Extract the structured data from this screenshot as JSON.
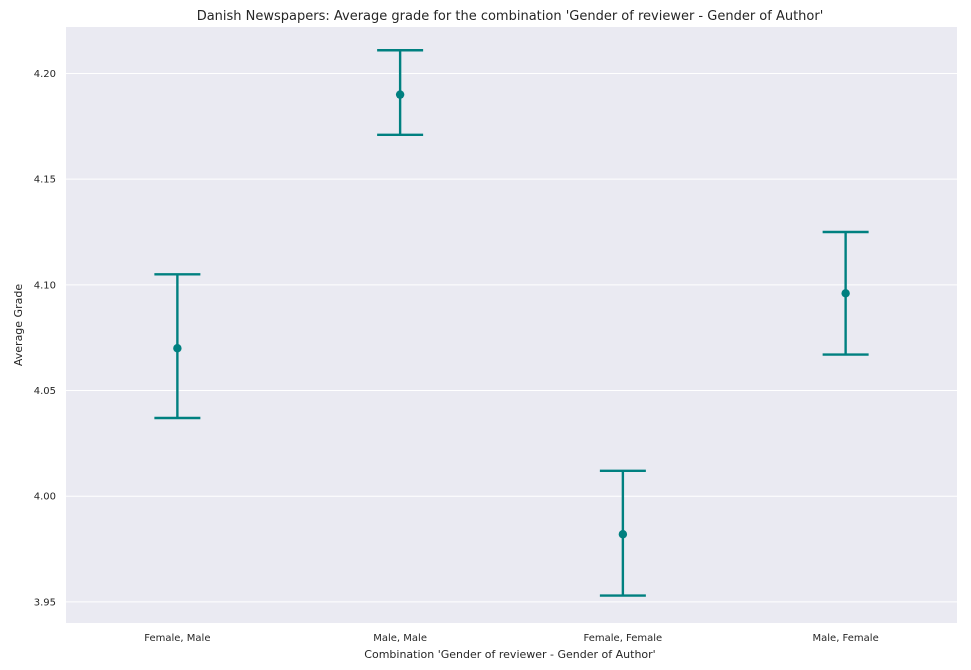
{
  "chart_data": {
    "type": "pointplot",
    "title": "Danish Newspapers: Average grade for the combination 'Gender of reviewer - Gender of Author'",
    "xlabel": "Combination 'Gender of reviewer - Gender of Author'",
    "ylabel": "Average Grade",
    "categories": [
      "Female, Male",
      "Male, Male",
      "Female, Female",
      "Male, Female"
    ],
    "series": [
      {
        "values": [
          4.07,
          4.19,
          3.982,
          4.096
        ],
        "ci_low": [
          4.037,
          4.171,
          3.953,
          4.067
        ],
        "ci_high": [
          4.105,
          4.211,
          4.012,
          4.125
        ]
      }
    ],
    "ylim": [
      3.94,
      4.222
    ],
    "yticks": [
      "3.95",
      "4.00",
      "4.05",
      "4.10",
      "4.15",
      "4.20"
    ],
    "grid": true,
    "colors": {
      "series": "#008080",
      "background": "#eaeaf2",
      "grid": "#ffffff"
    }
  }
}
